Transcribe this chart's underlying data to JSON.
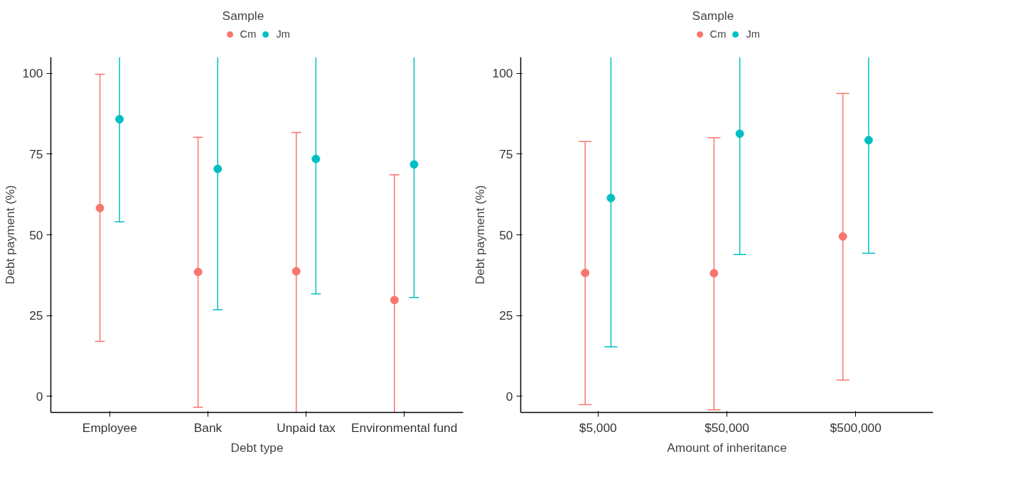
{
  "chart_data": [
    {
      "type": "scatter",
      "xlabel": "Debt type",
      "ylabel": "Debt payment (%)",
      "legend_title": "Sample",
      "legend": "top",
      "grid": false,
      "marker": "circle",
      "categories": [
        "Employee",
        "Bank",
        "Unpaid tax",
        "Environmental fund"
      ],
      "ylim": [
        -5,
        105
      ],
      "yticks": [
        0,
        25,
        50,
        75,
        100
      ],
      "series": [
        {
          "name": "Cm",
          "color": "#f8766d",
          "values": [
            58.3,
            38.5,
            38.7,
            29.8
          ],
          "errors": [
            [
              17,
              99.7
            ],
            [
              -3.4,
              80.2
            ],
            [
              -5,
              81.7
            ],
            [
              -5,
              68.6
            ]
          ]
        },
        {
          "name": "Jm",
          "color": "#00bfc4",
          "values": [
            85.8,
            70.4,
            73.5,
            71.8
          ],
          "errors": [
            [
              54,
              105
            ],
            [
              26.8,
              105
            ],
            [
              31.7,
              105
            ],
            [
              30.6,
              105
            ]
          ]
        }
      ]
    },
    {
      "type": "scatter",
      "xlabel": "Amount of inheritance",
      "ylabel": "Debt payment (%)",
      "legend_title": "Sample",
      "legend": "top",
      "grid": false,
      "marker": "circle",
      "categories": [
        "$5,000",
        "$50,000",
        "$500,000"
      ],
      "ylim": [
        -5,
        105
      ],
      "yticks": [
        0,
        25,
        50,
        75,
        100
      ],
      "series": [
        {
          "name": "Cm",
          "color": "#f8766d",
          "values": [
            38.2,
            38.1,
            49.5
          ],
          "errors": [
            [
              -2.6,
              78.9
            ],
            [
              -4.2,
              80.1
            ],
            [
              5,
              93.8
            ]
          ]
        },
        {
          "name": "Jm",
          "color": "#00bfc4",
          "values": [
            61.4,
            81.3,
            79.3
          ],
          "errors": [
            [
              15.3,
              105
            ],
            [
              43.9,
              105
            ],
            [
              44.3,
              105
            ]
          ]
        }
      ]
    }
  ]
}
